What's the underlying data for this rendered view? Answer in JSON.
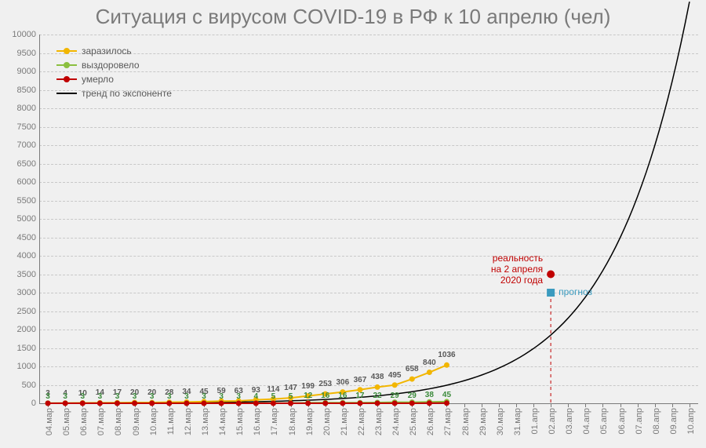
{
  "title": "Ситуация с вирусом COVID-19 в РФ к 10 апрелю (чел)",
  "chart": {
    "type": "line",
    "background_color": "#f0f0f0",
    "grid_color": "#c8c8c8",
    "axis_color": "#7a7a7a",
    "title_fontsize": 26,
    "tick_fontsize": 11,
    "legend_fontsize": 12,
    "datalabel_fontsize": 10,
    "xlim": [
      0,
      37
    ],
    "ylim": [
      0,
      10000
    ],
    "ytick_step": 500,
    "yticks": [
      0,
      500,
      1000,
      1500,
      2000,
      2500,
      3000,
      3500,
      4000,
      4500,
      5000,
      5500,
      6000,
      6500,
      7000,
      7500,
      8000,
      8500,
      9000,
      9500,
      10000
    ],
    "x_categories": [
      "04.мар",
      "05.мар",
      "06.мар",
      "07.мар",
      "08.мар",
      "09.мар",
      "10.мар",
      "11.мар",
      "12.мар",
      "13.мар",
      "14.мар",
      "15.мар",
      "16.мар",
      "17.мар",
      "18.мар",
      "19.мар",
      "20.мар",
      "21.мар",
      "22.мар",
      "23.мар",
      "24.мар",
      "25.мар",
      "26.мар",
      "27.мар",
      "28.мар",
      "29.мар",
      "30.мар",
      "31.мар",
      "01.апр",
      "02.апр",
      "03.апр",
      "04.апр",
      "05.апр",
      "06.апр",
      "07.апр",
      "08.апр",
      "09.апр",
      "10.апр"
    ],
    "series": {
      "infected": {
        "label": "заразилось",
        "color": "#f2b600",
        "line_width": 2,
        "marker": "circle",
        "marker_size": 7,
        "values": [
          3,
          4,
          10,
          14,
          17,
          20,
          20,
          28,
          34,
          45,
          59,
          63,
          93,
          114,
          147,
          199,
          253,
          306,
          367,
          438,
          495,
          658,
          840,
          1036
        ],
        "label_color": "#595959"
      },
      "recovered": {
        "label": "выздоровело",
        "color": "#8bbf3f",
        "line_width": 2,
        "marker": "circle",
        "marker_size": 7,
        "values": [
          3,
          3,
          3,
          3,
          3,
          3,
          3,
          3,
          3,
          3,
          3,
          3,
          4,
          5,
          5,
          12,
          16,
          16,
          17,
          22,
          29,
          29,
          38,
          45
        ],
        "label_color": "#3b8a3b"
      },
      "died": {
        "label": "умерло",
        "color": "#c00000",
        "line_width": 2,
        "marker": "circle",
        "marker_size": 7,
        "values": [
          0,
          0,
          0,
          0,
          0,
          0,
          0,
          0,
          0,
          0,
          0,
          0,
          0,
          0,
          0,
          0,
          0,
          1,
          1,
          1,
          1,
          1,
          2,
          4
        ],
        "label_color": "#c00000"
      },
      "trend": {
        "label": "тренд по экспоненте",
        "color": "#000000",
        "line_width": 1.5,
        "marker": null,
        "formula_base": 3,
        "formula_growth": 1.248,
        "x_start": 0,
        "x_end": 37
      }
    },
    "legend_order": [
      "infected",
      "recovered",
      "died",
      "trend"
    ],
    "annotations": {
      "reality": {
        "text_lines": [
          "реальность",
          "на 2 апреля",
          "2020 года"
        ],
        "color": "#c00000",
        "x_index": 29,
        "y_value": 3500,
        "marker": "circle",
        "marker_size": 10,
        "text_side": "left"
      },
      "forecast": {
        "text": "прогноз",
        "color": "#3b9bbf",
        "x_index": 29,
        "y_value": 3000,
        "marker": "square",
        "marker_size": 10,
        "text_side": "right",
        "drop_line": true,
        "drop_line_color": "#c00000",
        "drop_line_dash": "4,4"
      }
    }
  }
}
